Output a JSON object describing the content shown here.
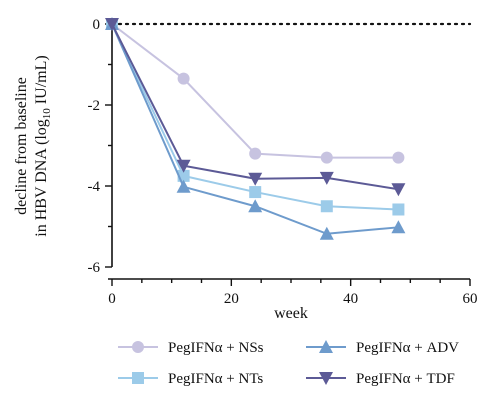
{
  "chart_data": {
    "type": "line",
    "xlabel": "week",
    "ylabel_line1": "decline from baseline",
    "ylabel_line2_pre": "in HBV DNA (log",
    "ylabel_line2_sub": "10",
    "ylabel_line2_post": " IU/mL)",
    "xlim": [
      0,
      60
    ],
    "ylim": [
      -6,
      0
    ],
    "xticks": [
      0,
      20,
      40,
      60
    ],
    "xtick_labels": [
      "0",
      "20",
      "40",
      "60"
    ],
    "yticks": [
      0,
      -2,
      -4,
      -6
    ],
    "ytick_labels": [
      "0",
      "-2",
      "-4",
      "-6"
    ],
    "reference_line_y": 0,
    "grid": false,
    "legend_position": "bottom",
    "series": [
      {
        "name": "PegIFNα + NSs",
        "color": "#c7c3e0",
        "marker": "circle",
        "points": [
          [
            0,
            0
          ],
          [
            12,
            -1.35
          ],
          [
            24,
            -3.2
          ],
          [
            36,
            -3.3
          ],
          [
            48,
            -3.3
          ]
        ]
      },
      {
        "name": "PegIFNα + NTs",
        "color": "#9ccbe9",
        "marker": "square",
        "points": [
          [
            0,
            0
          ],
          [
            12,
            -3.75
          ],
          [
            24,
            -4.15
          ],
          [
            36,
            -4.5
          ],
          [
            48,
            -4.58
          ]
        ]
      },
      {
        "name": "PegIFNα + ADV",
        "color": "#6e9bcc",
        "marker": "triangle-up",
        "points": [
          [
            0,
            0
          ],
          [
            12,
            -4.02
          ],
          [
            24,
            -4.5
          ],
          [
            36,
            -5.18
          ],
          [
            48,
            -5.02
          ]
        ]
      },
      {
        "name": "PegIFNα + TDF",
        "color": "#5c5a96",
        "marker": "triangle-down",
        "points": [
          [
            0,
            0
          ],
          [
            12,
            -3.5
          ],
          [
            24,
            -3.82
          ],
          [
            36,
            -3.8
          ],
          [
            48,
            -4.08
          ]
        ]
      }
    ]
  }
}
